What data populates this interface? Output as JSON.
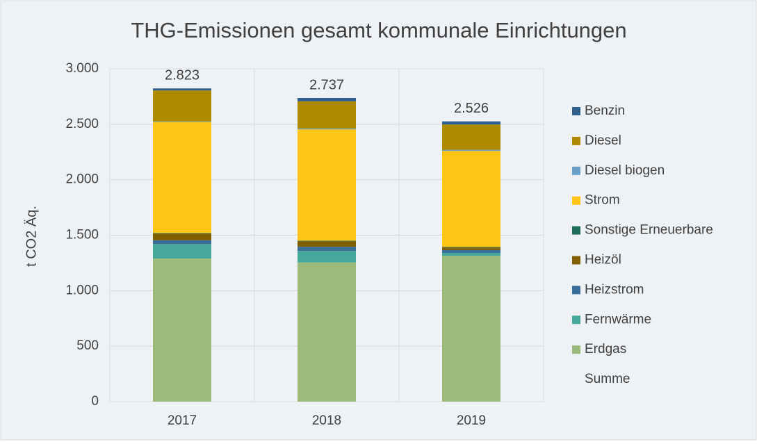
{
  "chart_data": {
    "type": "stacked-bar",
    "title": "THG-Emissionen gesamt kommunale Einrichtungen",
    "y_label": "t CO2 Äq.",
    "categories": [
      "2017",
      "2018",
      "2019"
    ],
    "series": [
      {
        "name": "Erdgas",
        "color": "#9bbb7c",
        "values": [
          1290,
          1255,
          1315
        ]
      },
      {
        "name": "Fernwärme",
        "color": "#45a89a",
        "values": [
          130,
          103,
          25
        ]
      },
      {
        "name": "Heizstrom",
        "color": "#3a6e9a",
        "values": [
          35,
          38,
          25
        ]
      },
      {
        "name": "Heizöl",
        "color": "#7f5f00",
        "values": [
          60,
          50,
          25
        ]
      },
      {
        "name": "Sonstige Erneuerbare",
        "color": "#1f6b5a",
        "values": [
          5,
          5,
          5
        ]
      },
      {
        "name": "Strom",
        "color": "#ffc515",
        "values": [
          1000,
          1003,
          865
        ]
      },
      {
        "name": "Diesel biogen",
        "color": "#6a9fc7",
        "values": [
          5,
          8,
          10
        ]
      },
      {
        "name": "Diesel",
        "color": "#ae8a00",
        "values": [
          280,
          245,
          228
        ]
      },
      {
        "name": "Benzin",
        "color": "#2f5f8f",
        "values": [
          18,
          30,
          28
        ]
      }
    ],
    "totals": {
      "name": "Summe",
      "values": [
        2823,
        2737,
        2526
      ],
      "value_labels": [
        "2.823",
        "2.737",
        "2.526"
      ]
    },
    "ylim": [
      0,
      3000
    ],
    "yticks": [
      0,
      500,
      {
        "value": 1000,
        "label": "1.000"
      },
      {
        "value": 1500,
        "label": "1.500"
      },
      {
        "value": 2000,
        "label": "2.000"
      },
      {
        "value": 2500,
        "label": "2.500"
      },
      {
        "value": 3000,
        "label": "3.000"
      }
    ],
    "grid": true
  }
}
